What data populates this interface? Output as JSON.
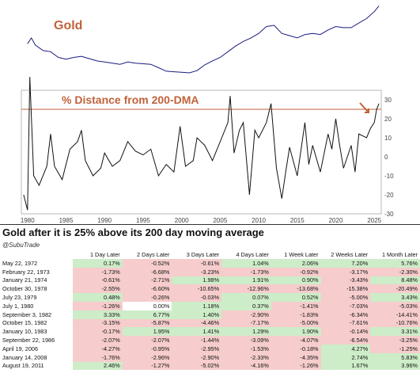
{
  "chart_data": [
    {
      "type": "line",
      "title": "Gold",
      "x": [
        1980,
        1980.5,
        1981,
        1982,
        1983,
        1984,
        1985,
        1986,
        1987,
        1988,
        1989,
        1990,
        1991,
        1992,
        1993,
        1994,
        1995,
        1996,
        1997,
        1998,
        1999,
        2000,
        2001,
        2002,
        2003,
        2004,
        2005,
        2006,
        2007,
        2008,
        2009,
        2010,
        2011,
        2012,
        2013,
        2014,
        2015,
        2016,
        2017,
        2018,
        2019,
        2020,
        2021,
        2022,
        2023,
        2024,
        2025,
        2025.6
      ],
      "values": [
        62,
        72,
        60,
        50,
        48,
        38,
        35,
        38,
        40,
        36,
        32,
        30,
        28,
        26,
        30,
        28,
        27,
        26,
        20,
        14,
        13,
        12,
        11,
        15,
        25,
        32,
        38,
        48,
        58,
        66,
        72,
        80,
        92,
        94,
        80,
        76,
        72,
        78,
        80,
        78,
        86,
        92,
        90,
        90,
        98,
        106,
        118,
        128
      ],
      "ylim": [
        0,
        130
      ]
    },
    {
      "type": "line",
      "title": "% Distance from 200-DMA",
      "x": [
        1979.5,
        1980,
        1980.3,
        1980.8,
        1981.5,
        1982.5,
        1983,
        1983.5,
        1984.5,
        1985.5,
        1986.5,
        1987,
        1987.5,
        1988.5,
        1989.5,
        1990,
        1991,
        1992,
        1993,
        1994,
        1995,
        1996,
        1997,
        1998,
        1999,
        1999.8,
        2000.5,
        2001.5,
        2002,
        2003,
        2004,
        2005,
        2006,
        2006.3,
        2006.8,
        2007.5,
        2008,
        2008.8,
        2009.5,
        2010,
        2011,
        2011.6,
        2012.3,
        2013,
        2013.5,
        2014,
        2015,
        2016,
        2016.5,
        2017,
        2018,
        2019,
        2019.5,
        2020,
        2020.5,
        2021,
        2022,
        2022.5,
        2023,
        2024,
        2024.5,
        2025,
        2025.3,
        2025.6
      ],
      "values": [
        -20,
        -28,
        42,
        -10,
        -15,
        -5,
        12,
        -5,
        -12,
        4,
        8,
        14,
        -2,
        -10,
        -6,
        2,
        -5,
        -2,
        8,
        3,
        1,
        4,
        -10,
        -4,
        -8,
        16,
        -5,
        -2,
        10,
        6,
        -2,
        8,
        18,
        32,
        2,
        14,
        18,
        -20,
        14,
        10,
        18,
        28,
        -6,
        -22,
        -8,
        5,
        -10,
        18,
        -4,
        6,
        -8,
        12,
        4,
        20,
        6,
        -6,
        6,
        -8,
        12,
        10,
        15,
        18,
        25,
        28
      ],
      "ylim": [
        -30,
        35
      ],
      "yticks": [
        -30,
        -20,
        -10,
        0,
        10,
        20,
        30
      ],
      "xticks": [
        1980,
        1985,
        1990,
        1995,
        2000,
        2005,
        2010,
        2015,
        2020,
        2025
      ],
      "reference_line": 25
    },
    {
      "type": "table",
      "title": "Gold after it is 25% above its 200 day moving average",
      "source": "@SubuTrade",
      "columns": [
        "",
        "1 Day Later",
        "2 Days Later",
        "3 Days Later",
        "4 Days Later",
        "1 Week Later",
        "2 Weeks Later",
        "1 Month Later"
      ],
      "rows": [
        [
          "May 22, 1972",
          "0.17%",
          "-0.52%",
          "-0.61%",
          "1.04%",
          "2.06%",
          "7.20%",
          "5.76%"
        ],
        [
          "February 22, 1973",
          "-1.73%",
          "-6.68%",
          "-3.23%",
          "-1.73%",
          "-0.92%",
          "-3.17%",
          "-2.30%"
        ],
        [
          "January 21, 1974",
          "-0.61%",
          "-2.71%",
          "1.98%",
          "1.91%",
          "0.90%",
          "-3.43%",
          "8.48%"
        ],
        [
          "October 30, 1978",
          "-2.55%",
          "-6.60%",
          "-10.65%",
          "-12.96%",
          "-13.68%",
          "-15.38%",
          "-20.49%"
        ],
        [
          "July 23, 1979",
          "0.48%",
          "-0.26%",
          "-0.03%",
          "0.07%",
          "0.52%",
          "-5.00%",
          "3.43%"
        ],
        [
          "July 1, 1980",
          "-1.26%",
          "0.00%",
          "1.18%",
          "0.37%",
          "-1.41%",
          "-7.03%",
          "-5.03%"
        ],
        [
          "September 3, 1982",
          "3.33%",
          "6.77%",
          "1.40%",
          "-2.90%",
          "-1.83%",
          "-6.34%",
          "-14.41%"
        ],
        [
          "October 15, 1982",
          "-3.15%",
          "-5.87%",
          "-4.46%",
          "-7.17%",
          "-5.00%",
          "-7.61%",
          "-10.76%"
        ],
        [
          "January 10, 1983",
          "-0.17%",
          "1.95%",
          "1.41%",
          "1.29%",
          "1.90%",
          "-0.14%",
          "3.31%"
        ],
        [
          "September 22, 1986",
          "-2.07%",
          "-2.07%",
          "-1.44%",
          "-3.09%",
          "-4.07%",
          "-6.54%",
          "-3.25%"
        ],
        [
          "April 19, 2006",
          "-4.27%",
          "-0.95%",
          "-2.95%",
          "-1.53%",
          "-0.18%",
          "4.27%",
          "-1.25%"
        ],
        [
          "January 14, 2008",
          "-1.76%",
          "-2.96%",
          "-2.90%",
          "-2.33%",
          "-4.35%",
          "2.74%",
          "5.83%"
        ],
        [
          "August 19, 2011",
          "2.46%",
          "-1.27%",
          "-5.02%",
          "-4.16%",
          "-1.26%",
          "1.67%",
          "3.96%"
        ]
      ]
    }
  ],
  "colors": {
    "gold_line": "#1a1a80",
    "dist_line": "#111111",
    "title": "#c0623a",
    "reference": "#c0623a",
    "pos_cell": "#cdecc8",
    "neg_cell": "#f6cccc"
  }
}
